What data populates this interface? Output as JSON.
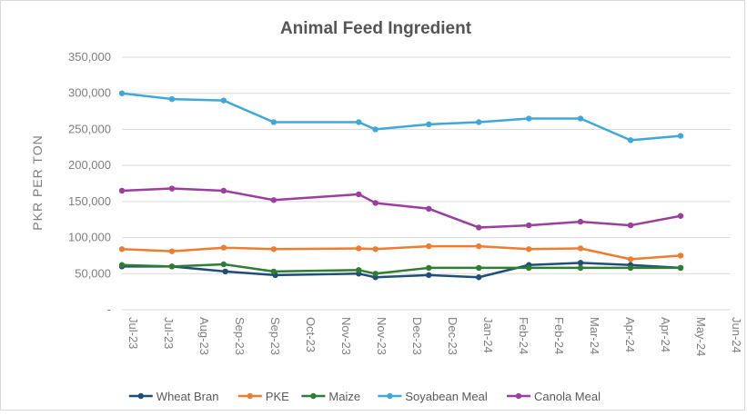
{
  "chart_data": {
    "type": "line",
    "title": "Animal Feed Ingredient",
    "xlabel": "",
    "ylabel": "PKR PER TON",
    "ylim": [
      0,
      350000
    ],
    "y_ticks": [
      "-",
      "50,000",
      "100,000",
      "150,000",
      "200,000",
      "250,000",
      "300,000",
      "350,000"
    ],
    "x_ticks": [
      "Jul-23",
      "Jul-23",
      "Aug-23",
      "Sep-23",
      "Sep-23",
      "Oct-23",
      "Nov-23",
      "Nov-23",
      "Dec-23",
      "Dec-23",
      "Jan-24",
      "Feb-24",
      "Feb-24",
      "Mar-24",
      "Apr-24",
      "Apr-24",
      "May-24",
      "Jun-24"
    ],
    "x_range": [
      "2023-07-01",
      "2024-06-30"
    ],
    "grid": "horizontal",
    "legend_position": "bottom",
    "series": [
      {
        "name": "Wheat Bran",
        "color": "#1f4e79",
        "points": [
          [
            "2023-07-01",
            60000
          ],
          [
            "2023-07-31",
            60000
          ],
          [
            "2023-09-01",
            53000
          ],
          [
            "2023-10-01",
            48000
          ],
          [
            "2023-11-20",
            50000
          ],
          [
            "2023-11-30",
            45000
          ],
          [
            "2024-01-01",
            48000
          ],
          [
            "2024-01-31",
            45000
          ],
          [
            "2024-03-01",
            62000
          ],
          [
            "2024-04-01",
            65000
          ],
          [
            "2024-05-01",
            62000
          ],
          [
            "2024-05-31",
            58000
          ]
        ]
      },
      {
        "name": "PKE",
        "color": "#ed7d31",
        "points": [
          [
            "2023-07-01",
            84000
          ],
          [
            "2023-07-31",
            81000
          ],
          [
            "2023-08-31",
            86000
          ],
          [
            "2023-09-30",
            84000
          ],
          [
            "2023-11-20",
            85000
          ],
          [
            "2023-11-30",
            84000
          ],
          [
            "2024-01-01",
            88000
          ],
          [
            "2024-01-31",
            88000
          ],
          [
            "2024-03-01",
            84000
          ],
          [
            "2024-04-01",
            85000
          ],
          [
            "2024-05-01",
            70000
          ],
          [
            "2024-05-31",
            75000
          ]
        ]
      },
      {
        "name": "Maize",
        "color": "#2e7d32",
        "points": [
          [
            "2023-07-01",
            62000
          ],
          [
            "2023-07-31",
            60000
          ],
          [
            "2023-08-31",
            63000
          ],
          [
            "2023-09-30",
            53000
          ],
          [
            "2023-11-20",
            55000
          ],
          [
            "2023-11-30",
            50000
          ],
          [
            "2024-01-01",
            58000
          ],
          [
            "2024-01-31",
            58000
          ],
          [
            "2024-03-01",
            58000
          ],
          [
            "2024-04-01",
            58000
          ],
          [
            "2024-05-01",
            58000
          ],
          [
            "2024-05-31",
            58000
          ]
        ]
      },
      {
        "name": "Soyabean Meal",
        "color": "#41a7d8",
        "points": [
          [
            "2023-07-01",
            300000
          ],
          [
            "2023-07-31",
            292000
          ],
          [
            "2023-08-31",
            290000
          ],
          [
            "2023-09-30",
            260000
          ],
          [
            "2023-11-20",
            260000
          ],
          [
            "2023-11-30",
            250000
          ],
          [
            "2024-01-01",
            257000
          ],
          [
            "2024-01-31",
            260000
          ],
          [
            "2024-03-01",
            265000
          ],
          [
            "2024-04-01",
            265000
          ],
          [
            "2024-05-01",
            235000
          ],
          [
            "2024-05-31",
            241000
          ]
        ]
      },
      {
        "name": "Canola Meal",
        "color": "#9b3f9e",
        "points": [
          [
            "2023-07-01",
            165000
          ],
          [
            "2023-07-31",
            168000
          ],
          [
            "2023-08-31",
            165000
          ],
          [
            "2023-09-30",
            152000
          ],
          [
            "2023-11-20",
            160000
          ],
          [
            "2023-11-30",
            148000
          ],
          [
            "2024-01-01",
            140000
          ],
          [
            "2024-01-31",
            114000
          ],
          [
            "2024-03-01",
            117000
          ],
          [
            "2024-04-01",
            122000
          ],
          [
            "2024-05-01",
            117000
          ],
          [
            "2024-05-31",
            130000
          ]
        ]
      }
    ]
  }
}
